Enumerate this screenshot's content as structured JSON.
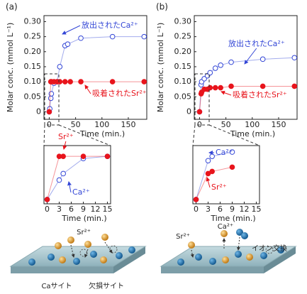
{
  "panel_labels": [
    "(a)",
    "(b)"
  ],
  "chart_data": [
    {
      "type": "scatter",
      "ylabel": "Molar conc. (mmol L⁻¹)",
      "xlabel": "Time (min.)",
      "xlim": [
        -10,
        185
      ],
      "xticks": [
        0,
        50,
        100,
        150
      ],
      "ylim": [
        -0.025,
        0.32
      ],
      "yticks": [
        0,
        0.05,
        {
          "value": 0.1,
          "label": "0.10"
        },
        0.15,
        {
          "value": 0.2,
          "label": "0.20"
        },
        0.25,
        {
          "value": 0.3,
          "label": "0.30"
        }
      ],
      "annotations": [
        "放出されたCa²⁺",
        "吸着されたSr²⁺"
      ],
      "series": [
        {
          "color": "#3346d6",
          "filled": false,
          "x": [
            0,
            1,
            3,
            4,
            9,
            15,
            20,
            30,
            35,
            60,
            120,
            180
          ],
          "values": [
            0,
            0.01,
            0.045,
            0.06,
            0.095,
            0.1,
            0.15,
            0.22,
            0.225,
            0.245,
            0.25,
            0.25
          ]
        },
        {
          "color": "#e8141c",
          "filled": true,
          "x": [
            0,
            3,
            4,
            9,
            15,
            20,
            30,
            40,
            60,
            120,
            180
          ],
          "values": [
            0,
            0.1,
            0.1,
            0.1,
            0.1,
            0.1,
            0.1,
            0.1,
            0.1,
            0.1,
            0.1
          ]
        }
      ]
    },
    {
      "type": "scatter",
      "xlabel": "Time (min.)",
      "xlim": [
        -0.8,
        15.8
      ],
      "xticks": [
        0,
        3,
        6,
        9,
        12,
        15
      ],
      "ylim": [
        -0.01,
        0.125
      ],
      "annotations": [
        "Sr²⁺",
        "Ca²⁺"
      ],
      "series": [
        {
          "color": "#3346d6",
          "filled": false,
          "x": [
            0,
            3,
            4,
            9,
            15
          ],
          "values": [
            0,
            0.045,
            0.06,
            0.095,
            0.1
          ]
        },
        {
          "color": "#e8141c",
          "filled": true,
          "x": [
            0,
            3,
            4,
            9,
            15
          ],
          "values": [
            0,
            0.1,
            0.1,
            0.1,
            0.1
          ]
        }
      ]
    },
    {
      "type": "scatter",
      "ylabel": "Molar conc. (mmol L⁻¹)",
      "xlabel": "Time (min.)",
      "xlim": [
        -10,
        185
      ],
      "xticks": [
        0,
        50,
        100,
        150
      ],
      "ylim": [
        -0.025,
        0.32
      ],
      "yticks": [
        0,
        0.05,
        {
          "value": 0.1,
          "label": "0.10"
        },
        0.15,
        {
          "value": 0.2,
          "label": "0.20"
        },
        0.25,
        {
          "value": 0.3,
          "label": "0.30"
        }
      ],
      "annotations": [
        "放出されたCa²⁺",
        "吸着されたSr²⁺"
      ],
      "series": [
        {
          "color": "#3346d6",
          "filled": false,
          "x": [
            0,
            3,
            4,
            9,
            15,
            20,
            30,
            40,
            60,
            120,
            180
          ],
          "values": [
            0,
            0.09,
            0.1,
            0.11,
            0.12,
            0.13,
            0.145,
            0.155,
            0.165,
            0.175,
            0.18
          ]
        },
        {
          "color": "#e8141c",
          "filled": true,
          "x": [
            0,
            3,
            4,
            9,
            15,
            20,
            30,
            40,
            60,
            120,
            180
          ],
          "values": [
            0,
            0.06,
            0.065,
            0.075,
            0.075,
            0.08,
            0.08,
            0.08,
            0.085,
            0.085,
            0.085
          ]
        }
      ]
    },
    {
      "type": "scatter",
      "xlabel": "Time (min.)",
      "xlim": [
        -0.8,
        15.8
      ],
      "xticks": [
        0,
        3,
        6,
        9,
        12,
        15
      ],
      "ylim": [
        -0.01,
        0.125
      ],
      "annotations": [
        "Ca²⁺",
        "Sr²⁺"
      ],
      "series": [
        {
          "color": "#3346d6",
          "filled": false,
          "x": [
            0,
            3,
            4,
            9
          ],
          "values": [
            0,
            0.09,
            0.1,
            0.11
          ]
        },
        {
          "color": "#e8141c",
          "filled": true,
          "x": [
            0,
            3,
            4,
            9
          ],
          "values": [
            0,
            0.06,
            0.065,
            0.075
          ]
        }
      ]
    }
  ],
  "diagrams": [
    {
      "labels": [
        "Sr²⁺",
        "Caサイト",
        "欠損サイト"
      ]
    },
    {
      "labels": [
        "Sr²⁺",
        "Ca²⁺",
        "イオン交換"
      ]
    }
  ]
}
